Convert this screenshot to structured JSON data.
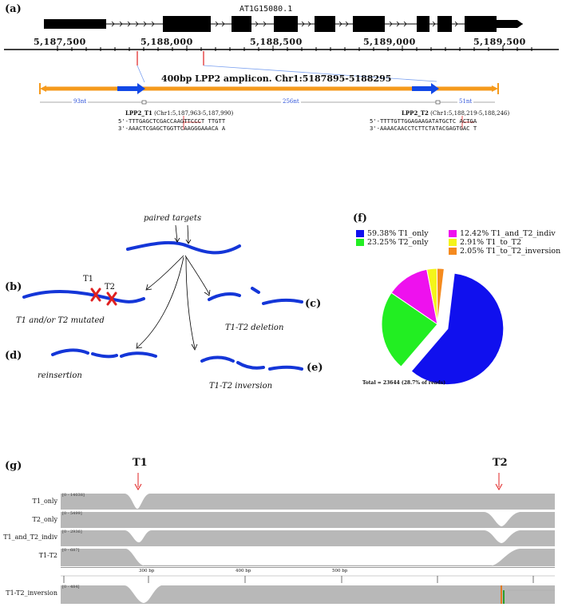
{
  "panels": {
    "a": "(a)",
    "b": "(b)",
    "c": "(c)",
    "d": "(d)",
    "e": "(e)",
    "f": "(f)",
    "g": "(g)"
  },
  "gene_model": {
    "name": "AT1G15080.1",
    "coordinates": [
      "5,187,500",
      "5,188,000",
      "5,188,500",
      "5,189,000",
      "5,189,500"
    ]
  },
  "amplicon": {
    "title": "400bp LPP2 amplicon. Chr1:5187895-5188295",
    "segment_left": "93nt",
    "segment_mid": "256nt",
    "segment_right": "51nt",
    "t1": {
      "name": "LPP2_T1",
      "coords": "(Chr1:5,187,963-5,187,990)",
      "seq5": "5'-TTTGAGCTCGACCAAGTTCCCT",
      "seq5_tail": "TTGTT",
      "seq3": "3'-AAACTCGAGCTGGTTCAAGGGAAACA",
      "seq3_tail": "A"
    },
    "t2": {
      "name": "LPP2_T2",
      "coords": "(Chr1:5,188,219-5,188,246)",
      "seq5": "5'-TTTTGTTGGAGAAGATATGCTC",
      "seq5_tail": "ACTGA",
      "seq3": "3'-AAAACAACCTCTTCTATACGAGTGAC",
      "seq3_tail": "T"
    }
  },
  "schematic": {
    "paired_targets": "paired targets",
    "t1": "T1",
    "t2": "T2",
    "mutated": "T1 and/or T2 mutated",
    "deletion": "T1-T2 deletion",
    "reinsertion": "reinsertion",
    "inversion": "T1-T2 inversion"
  },
  "chart_data": {
    "type": "pie",
    "title": "",
    "total_label": "Total = 23644 (28.7% of reads)",
    "legend_position": "top",
    "slices": [
      {
        "label": "T1_only",
        "percent_label": "59.38%",
        "value": 59.38,
        "color": "#1010ee",
        "exploded": true
      },
      {
        "label": "T2_only",
        "percent_label": "23.25%",
        "value": 23.25,
        "color": "#22ee22",
        "exploded": false
      },
      {
        "label": "T1_and_T2_indiv",
        "percent_label": "12.42%",
        "value": 12.42,
        "color": "#ee11ee",
        "exploded": false
      },
      {
        "label": "T1_to_T2",
        "percent_label": "2.91%",
        "value": 2.91,
        "color": "#f4f41a",
        "exploded": false
      },
      {
        "label": "T1_to_T2_inversion",
        "percent_label": "2.05%",
        "value": 2.05,
        "color": "#f58a1e",
        "exploded": false
      }
    ]
  },
  "igv": {
    "marker_t1": "T1",
    "marker_t2": "T2",
    "tracks": [
      {
        "label": "T1_only",
        "scale": "[0 - 14038]"
      },
      {
        "label": "T2_only",
        "scale": "[0 - 5499]"
      },
      {
        "label": "T1_and_T2_indiv",
        "scale": "[0 - 2936]"
      },
      {
        "label": "T1-T2",
        "scale": "[0 - 687]"
      }
    ],
    "ruler": [
      "300 bp",
      "400 bp",
      "500 bp"
    ],
    "inversion_track": {
      "label": "T1-T2_inversion",
      "scale": "[0 - 484]"
    }
  },
  "colors": {
    "amplicon": "#f59a1c",
    "arrow": "#1248e6",
    "read": "#1436d8",
    "red": "#e02020",
    "coverage": "#b8b8b8"
  }
}
